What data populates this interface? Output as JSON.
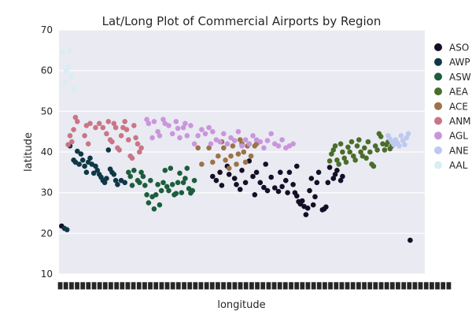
{
  "chart_data": {
    "type": "scatter",
    "title": "Lat/Long Plot of Commercial Airports by Region",
    "xlabel": "longitude",
    "ylabel": "latitude",
    "xlim": [
      -160,
      -60
    ],
    "ylim": [
      10,
      70
    ],
    "y_ticks": [
      10,
      20,
      30,
      40,
      50,
      60,
      70
    ],
    "grid": true,
    "legend_position": "right-outside",
    "background": "#eaeaf2",
    "series": [
      {
        "name": "ASO",
        "color": "#140f27",
        "points": [
          [
            -159.3,
            21.8
          ],
          [
            -118.0,
            34.0
          ],
          [
            -117.0,
            33.0
          ],
          [
            -116.0,
            35.0
          ],
          [
            -115.5,
            31.8
          ],
          [
            -114.0,
            36.5
          ],
          [
            -113.5,
            34.5
          ],
          [
            -112.0,
            33.5
          ],
          [
            -111.5,
            32.0
          ],
          [
            -110.5,
            30.8
          ],
          [
            -109.0,
            32.5
          ],
          [
            -108.0,
            37.8
          ],
          [
            -107.0,
            34.0
          ],
          [
            -106.0,
            35.0
          ],
          [
            -105.0,
            32.5
          ],
          [
            -104.0,
            31.3
          ],
          [
            -103.0,
            30.5
          ],
          [
            -102.0,
            33.8
          ],
          [
            -101.0,
            31.2
          ],
          [
            -100.0,
            30.3
          ],
          [
            -99.0,
            31.5
          ],
          [
            -98.0,
            33.0
          ],
          [
            -97.0,
            35.0
          ],
          [
            -96.0,
            32.0
          ],
          [
            -95.5,
            30.0
          ],
          [
            -95.0,
            29.2
          ],
          [
            -94.5,
            27.8
          ],
          [
            -94.0,
            27.2
          ],
          [
            -93.5,
            28.0
          ],
          [
            -93.0,
            26.6
          ],
          [
            -92.5,
            24.6
          ],
          [
            -92.0,
            26.2
          ],
          [
            -91.5,
            30.5
          ],
          [
            -91.0,
            33.5
          ],
          [
            -90.5,
            27.0
          ],
          [
            -90.0,
            29.0
          ],
          [
            -89.5,
            32.5
          ],
          [
            -89.0,
            35.0
          ],
          [
            -88.0,
            25.8
          ],
          [
            -87.5,
            26.0
          ],
          [
            -87.0,
            26.5
          ],
          [
            -86.5,
            32.5
          ],
          [
            -86.0,
            36.2
          ],
          [
            -85.0,
            33.5
          ],
          [
            -84.5,
            34.5
          ],
          [
            -84.0,
            35.5
          ],
          [
            -83.0,
            33.0
          ],
          [
            -82.5,
            34.0
          ],
          [
            -95.0,
            36.5
          ],
          [
            -97.5,
            30.0
          ],
          [
            -99.5,
            35.0
          ],
          [
            -103.5,
            37.0
          ],
          [
            -106.5,
            29.5
          ],
          [
            -110.0,
            35.5
          ],
          [
            -64.0,
            18.3
          ]
        ]
      },
      {
        "name": "AWP",
        "color": "#0f3847",
        "points": [
          [
            -158.5,
            21.2
          ],
          [
            -157.8,
            20.9
          ],
          [
            -157.0,
            41.5
          ],
          [
            -156.0,
            38.0
          ],
          [
            -155.5,
            37.5
          ],
          [
            -155.0,
            40.2
          ],
          [
            -154.5,
            37.0
          ],
          [
            -154.0,
            39.5
          ],
          [
            -153.5,
            38.0
          ],
          [
            -153.0,
            36.5
          ],
          [
            -152.5,
            35.0
          ],
          [
            -152.0,
            37.5
          ],
          [
            -151.5,
            38.5
          ],
          [
            -151.0,
            37.0
          ],
          [
            -150.5,
            34.8
          ],
          [
            -150.0,
            36.5
          ],
          [
            -149.5,
            35.5
          ],
          [
            -149.0,
            34.5
          ],
          [
            -148.5,
            33.8
          ],
          [
            -148.0,
            33.0
          ],
          [
            -147.5,
            32.5
          ],
          [
            -147.0,
            33.5
          ],
          [
            -146.5,
            40.5
          ],
          [
            -146.0,
            35.8
          ],
          [
            -145.5,
            35.0
          ],
          [
            -145.0,
            34.5
          ],
          [
            -144.5,
            33.0
          ],
          [
            -144.0,
            32.0
          ],
          [
            -143.0,
            33.0
          ],
          [
            -142.0,
            32.5
          ]
        ]
      },
      {
        "name": "ASW",
        "color": "#1b5e3b",
        "points": [
          [
            -141.0,
            35.0
          ],
          [
            -140.5,
            34.0
          ],
          [
            -140.0,
            31.8
          ],
          [
            -139.5,
            35.5
          ],
          [
            -138.5,
            33.0
          ],
          [
            -138.0,
            32.5
          ],
          [
            -137.5,
            35.0
          ],
          [
            -137.0,
            34.0
          ],
          [
            -136.5,
            31.8
          ],
          [
            -136.0,
            29.5
          ],
          [
            -135.5,
            27.5
          ],
          [
            -135.0,
            33.0
          ],
          [
            -134.5,
            29.0
          ],
          [
            -134.0,
            26.0
          ],
          [
            -133.5,
            29.5
          ],
          [
            -133.0,
            32.0
          ],
          [
            -132.5,
            27.0
          ],
          [
            -132.0,
            30.5
          ],
          [
            -131.5,
            32.5
          ],
          [
            -131.0,
            35.5
          ],
          [
            -130.5,
            31.5
          ],
          [
            -130.0,
            30.5
          ],
          [
            -129.5,
            36.0
          ],
          [
            -129.0,
            32.0
          ],
          [
            -128.5,
            29.5
          ],
          [
            -128.0,
            29.8
          ],
          [
            -127.5,
            32.5
          ],
          [
            -127.0,
            34.8
          ],
          [
            -126.5,
            30.0
          ],
          [
            -126.0,
            32.5
          ],
          [
            -125.5,
            33.5
          ],
          [
            -125.0,
            36.0
          ],
          [
            -124.5,
            31.0
          ],
          [
            -124.0,
            29.9
          ],
          [
            -123.5,
            30.5
          ],
          [
            -123.0,
            33.0
          ]
        ]
      },
      {
        "name": "AEA",
        "color": "#4a6d2b",
        "points": [
          [
            -86.0,
            37.8
          ],
          [
            -85.5,
            39.5
          ],
          [
            -85.0,
            40.5
          ],
          [
            -84.5,
            41.5
          ],
          [
            -84.0,
            38.0
          ],
          [
            -83.5,
            37.0
          ],
          [
            -83.0,
            42.0
          ],
          [
            -82.5,
            40.0
          ],
          [
            -82.0,
            38.5
          ],
          [
            -81.5,
            37.5
          ],
          [
            -81.0,
            41.2
          ],
          [
            -80.5,
            40.0
          ],
          [
            -80.0,
            42.5
          ],
          [
            -79.5,
            39.0
          ],
          [
            -79.0,
            38.0
          ],
          [
            -78.5,
            41.5
          ],
          [
            -78.0,
            43.0
          ],
          [
            -77.5,
            40.0
          ],
          [
            -77.0,
            39.0
          ],
          [
            -76.5,
            41.0
          ],
          [
            -76.0,
            38.5
          ],
          [
            -75.5,
            42.5
          ],
          [
            -75.0,
            40.0
          ],
          [
            -74.5,
            37.0
          ],
          [
            -74.0,
            36.5
          ],
          [
            -73.5,
            41.5
          ],
          [
            -73.0,
            40.5
          ],
          [
            -72.5,
            44.5
          ],
          [
            -72.0,
            43.8
          ],
          [
            -71.5,
            42.0
          ],
          [
            -71.0,
            40.5
          ],
          [
            -70.5,
            41.8
          ],
          [
            -70.0,
            42.5
          ],
          [
            -69.5,
            40.8
          ],
          [
            -69.0,
            41.5
          ],
          [
            -68.5,
            42.0
          ]
        ]
      },
      {
        "name": "ACE",
        "color": "#9c7349",
        "points": [
          [
            -122.0,
            41.0
          ],
          [
            -121.0,
            37.0
          ],
          [
            -119.0,
            41.0
          ],
          [
            -118.0,
            37.5
          ],
          [
            -116.5,
            39.0
          ],
          [
            -115.5,
            42.5
          ],
          [
            -115.0,
            41.0
          ],
          [
            -114.5,
            38.0
          ],
          [
            -113.5,
            36.0
          ],
          [
            -113.0,
            39.0
          ],
          [
            -112.5,
            41.5
          ],
          [
            -111.5,
            37.0
          ],
          [
            -111.0,
            39.5
          ],
          [
            -110.5,
            43.0
          ],
          [
            -110.0,
            42.0
          ],
          [
            -109.5,
            40.0
          ],
          [
            -109.0,
            37.5
          ],
          [
            -108.5,
            41.5
          ],
          [
            -108.0,
            42.0
          ],
          [
            -107.5,
            39.0
          ],
          [
            -106.5,
            41.5
          ],
          [
            -106.0,
            42.0
          ]
        ]
      },
      {
        "name": "ANM",
        "color": "#c97585",
        "points": [
          [
            -157.5,
            41.8
          ],
          [
            -157.0,
            44.0
          ],
          [
            -156.5,
            42.5
          ],
          [
            -156.0,
            45.5
          ],
          [
            -155.5,
            48.5
          ],
          [
            -155.0,
            47.5
          ],
          [
            -153.0,
            44.0
          ],
          [
            -152.5,
            46.5
          ],
          [
            -152.0,
            42.0
          ],
          [
            -151.5,
            47.0
          ],
          [
            -150.0,
            46.0
          ],
          [
            -149.0,
            47.0
          ],
          [
            -148.0,
            46.0
          ],
          [
            -147.0,
            44.5
          ],
          [
            -146.5,
            47.5
          ],
          [
            -146.0,
            43.0
          ],
          [
            -145.5,
            42.5
          ],
          [
            -145.0,
            47.0
          ],
          [
            -144.5,
            46.0
          ],
          [
            -144.0,
            41.0
          ],
          [
            -143.5,
            40.5
          ],
          [
            -143.0,
            44.0
          ],
          [
            -142.5,
            46.0
          ],
          [
            -142.0,
            47.5
          ],
          [
            -141.5,
            45.5
          ],
          [
            -141.0,
            43.0
          ],
          [
            -140.5,
            39.0
          ],
          [
            -140.0,
            38.5
          ],
          [
            -139.5,
            46.5
          ],
          [
            -139.0,
            43.5
          ],
          [
            -138.5,
            42.0
          ],
          [
            -138.0,
            40.0
          ],
          [
            -137.5,
            41.0
          ]
        ]
      },
      {
        "name": "AGL",
        "color": "#c996dc",
        "points": [
          [
            -136.0,
            48.0
          ],
          [
            -135.5,
            47.0
          ],
          [
            -134.5,
            43.5
          ],
          [
            -134.0,
            47.5
          ],
          [
            -133.0,
            45.0
          ],
          [
            -132.5,
            44.0
          ],
          [
            -131.5,
            48.0
          ],
          [
            -131.0,
            47.0
          ],
          [
            -130.0,
            46.5
          ],
          [
            -129.0,
            44.5
          ],
          [
            -128.0,
            47.5
          ],
          [
            -127.5,
            45.8
          ],
          [
            -127.0,
            43.5
          ],
          [
            -126.0,
            46.0
          ],
          [
            -125.5,
            47.0
          ],
          [
            -125.0,
            44.0
          ],
          [
            -124.0,
            46.5
          ],
          [
            -123.0,
            42.0
          ],
          [
            -122.0,
            44.0
          ],
          [
            -121.0,
            45.5
          ],
          [
            -120.0,
            44.5
          ],
          [
            -119.0,
            46.0
          ],
          [
            -118.5,
            42.0
          ],
          [
            -118.0,
            45.0
          ],
          [
            -117.0,
            43.0
          ],
          [
            -116.0,
            42.5
          ],
          [
            -115.0,
            44.5
          ],
          [
            -114.0,
            42.0
          ],
          [
            -113.0,
            43.5
          ],
          [
            -112.0,
            42.8
          ],
          [
            -111.0,
            45.0
          ],
          [
            -110.0,
            41.5
          ],
          [
            -109.0,
            43.0
          ],
          [
            -108.0,
            42.0
          ],
          [
            -107.0,
            44.0
          ],
          [
            -106.0,
            43.0
          ],
          [
            -105.0,
            42.5
          ],
          [
            -104.0,
            41.0
          ],
          [
            -103.0,
            42.8
          ],
          [
            -102.0,
            44.5
          ],
          [
            -101.0,
            42.0
          ],
          [
            -100.0,
            41.5
          ],
          [
            -99.0,
            43.0
          ],
          [
            -98.0,
            41.0
          ],
          [
            -97.0,
            41.5
          ],
          [
            -96.0,
            42.0
          ]
        ]
      },
      {
        "name": "ANE",
        "color": "#bec9f2",
        "points": [
          [
            -70.0,
            44.0
          ],
          [
            -69.5,
            43.2
          ],
          [
            -69.0,
            42.5
          ],
          [
            -68.5,
            41.8
          ],
          [
            -68.0,
            43.0
          ],
          [
            -67.5,
            42.2
          ],
          [
            -67.0,
            41.5
          ],
          [
            -66.5,
            44.0
          ],
          [
            -66.0,
            42.8
          ],
          [
            -65.5,
            41.8
          ],
          [
            -65.0,
            43.5
          ],
          [
            -64.5,
            44.5
          ]
        ]
      },
      {
        "name": "AAL",
        "color": "#d7eef3",
        "points": [
          [
            -159.0,
            64.5
          ],
          [
            -158.0,
            60.0
          ],
          [
            -157.5,
            61.0
          ],
          [
            -157.0,
            64.8
          ],
          [
            -156.5,
            58.5
          ],
          [
            -156.0,
            55.5
          ],
          [
            -158.5,
            57.0
          ]
        ]
      }
    ]
  }
}
